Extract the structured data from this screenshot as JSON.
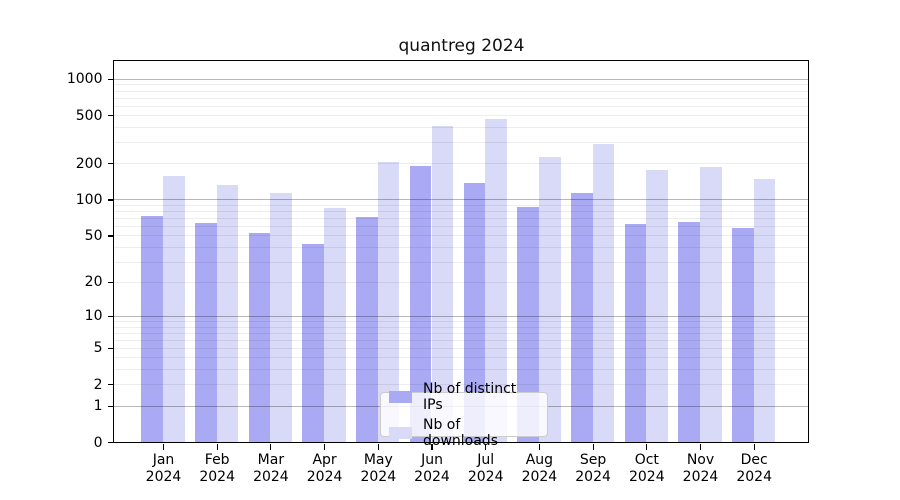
{
  "chart_data": {
    "type": "bar",
    "title": "quantreg 2024",
    "categories": [
      "Jan",
      "Feb",
      "Mar",
      "Apr",
      "May",
      "Jun",
      "Jul",
      "Aug",
      "Sep",
      "Oct",
      "Nov",
      "Dec"
    ],
    "category_year": "2024",
    "series": [
      {
        "name": "Nb of distinct IPs",
        "color": "#a9a9f4",
        "values": [
          73,
          63,
          52,
          42,
          71,
          188,
          137,
          86,
          114,
          62,
          65,
          58
        ]
      },
      {
        "name": "Nb of downloads",
        "color": "#d9d9f8",
        "values": [
          156,
          132,
          114,
          84,
          205,
          406,
          467,
          225,
          290,
          175,
          186,
          149
        ]
      }
    ],
    "y_axis": {
      "scale": "log1p",
      "tick_labels": [
        0,
        1,
        2,
        5,
        10,
        20,
        50,
        100,
        200,
        500,
        1000
      ],
      "range_max": 1405
    },
    "grid": {
      "major_ticks": [
        1,
        10,
        100,
        1000
      ],
      "major_color": "rgba(0,0,0,0.28)",
      "minor_color": "rgba(0,0,0,0.07)"
    },
    "legend_position": "lower center"
  }
}
